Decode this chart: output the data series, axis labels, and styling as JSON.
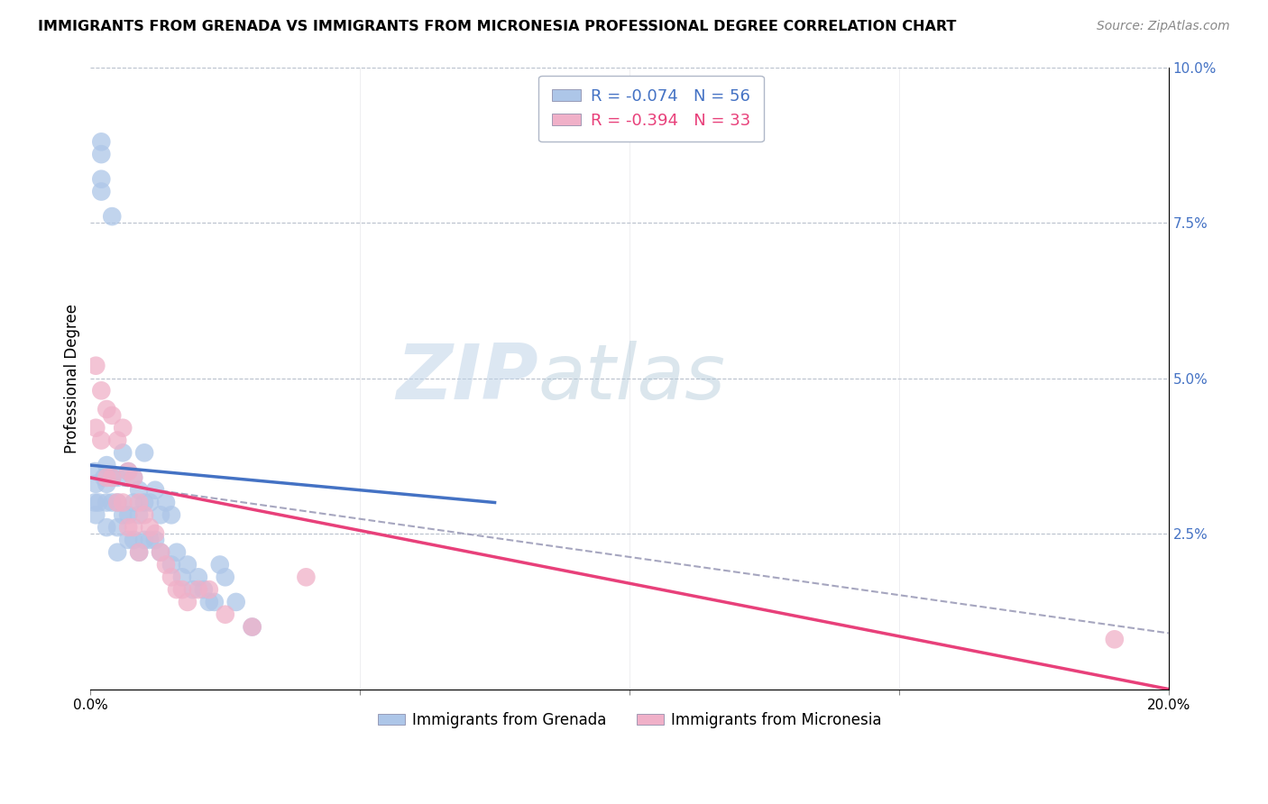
{
  "title": "IMMIGRANTS FROM GRENADA VS IMMIGRANTS FROM MICRONESIA PROFESSIONAL DEGREE CORRELATION CHART",
  "source": "Source: ZipAtlas.com",
  "ylabel": "Professional Degree",
  "xlim": [
    0.0,
    0.2
  ],
  "ylim": [
    0.0,
    0.1
  ],
  "grenada_color": "#adc6e8",
  "micronesia_color": "#f0b0c8",
  "grenada_line_color": "#4472c4",
  "micronesia_line_color": "#e8407a",
  "dashed_line_color": "#9090b0",
  "R_grenada": -0.074,
  "N_grenada": 56,
  "R_micronesia": -0.394,
  "N_micronesia": 33,
  "legend_label_grenada": "Immigrants from Grenada",
  "legend_label_micronesia": "Immigrants from Micronesia",
  "watermark_zip": "ZIP",
  "watermark_atlas": "atlas",
  "grenada_x": [
    0.0008,
    0.0008,
    0.001,
    0.001,
    0.0015,
    0.002,
    0.002,
    0.002,
    0.002,
    0.0025,
    0.003,
    0.003,
    0.003,
    0.003,
    0.004,
    0.004,
    0.004,
    0.005,
    0.005,
    0.005,
    0.005,
    0.006,
    0.006,
    0.007,
    0.007,
    0.007,
    0.008,
    0.008,
    0.008,
    0.009,
    0.009,
    0.009,
    0.01,
    0.01,
    0.01,
    0.011,
    0.011,
    0.012,
    0.012,
    0.013,
    0.013,
    0.014,
    0.015,
    0.015,
    0.016,
    0.017,
    0.018,
    0.019,
    0.02,
    0.021,
    0.022,
    0.023,
    0.024,
    0.025,
    0.027,
    0.03
  ],
  "grenada_y": [
    0.035,
    0.03,
    0.033,
    0.028,
    0.03,
    0.088,
    0.086,
    0.082,
    0.08,
    0.034,
    0.036,
    0.033,
    0.03,
    0.026,
    0.076,
    0.034,
    0.03,
    0.034,
    0.03,
    0.026,
    0.022,
    0.038,
    0.028,
    0.035,
    0.028,
    0.024,
    0.034,
    0.03,
    0.024,
    0.032,
    0.028,
    0.022,
    0.038,
    0.03,
    0.024,
    0.03,
    0.024,
    0.032,
    0.024,
    0.028,
    0.022,
    0.03,
    0.028,
    0.02,
    0.022,
    0.018,
    0.02,
    0.016,
    0.018,
    0.016,
    0.014,
    0.014,
    0.02,
    0.018,
    0.014,
    0.01
  ],
  "micronesia_x": [
    0.001,
    0.001,
    0.002,
    0.002,
    0.003,
    0.003,
    0.004,
    0.004,
    0.005,
    0.005,
    0.006,
    0.006,
    0.007,
    0.007,
    0.008,
    0.008,
    0.009,
    0.009,
    0.01,
    0.011,
    0.012,
    0.013,
    0.014,
    0.015,
    0.016,
    0.017,
    0.018,
    0.02,
    0.022,
    0.025,
    0.03,
    0.04,
    0.19
  ],
  "micronesia_y": [
    0.052,
    0.042,
    0.048,
    0.04,
    0.045,
    0.034,
    0.044,
    0.034,
    0.04,
    0.03,
    0.042,
    0.03,
    0.035,
    0.026,
    0.034,
    0.026,
    0.03,
    0.022,
    0.028,
    0.026,
    0.025,
    0.022,
    0.02,
    0.018,
    0.016,
    0.016,
    0.014,
    0.016,
    0.016,
    0.012,
    0.01,
    0.018,
    0.008
  ],
  "grenada_line_x0": 0.0,
  "grenada_line_x1": 0.075,
  "grenada_line_y0": 0.036,
  "grenada_line_y1": 0.03,
  "micronesia_line_x0": 0.0,
  "micronesia_line_x1": 0.2,
  "micronesia_line_y0": 0.034,
  "micronesia_line_y1": 0.0,
  "dash_line_x0": 0.004,
  "dash_line_x1": 0.2,
  "dash_line_y0": 0.033,
  "dash_line_y1": 0.009
}
